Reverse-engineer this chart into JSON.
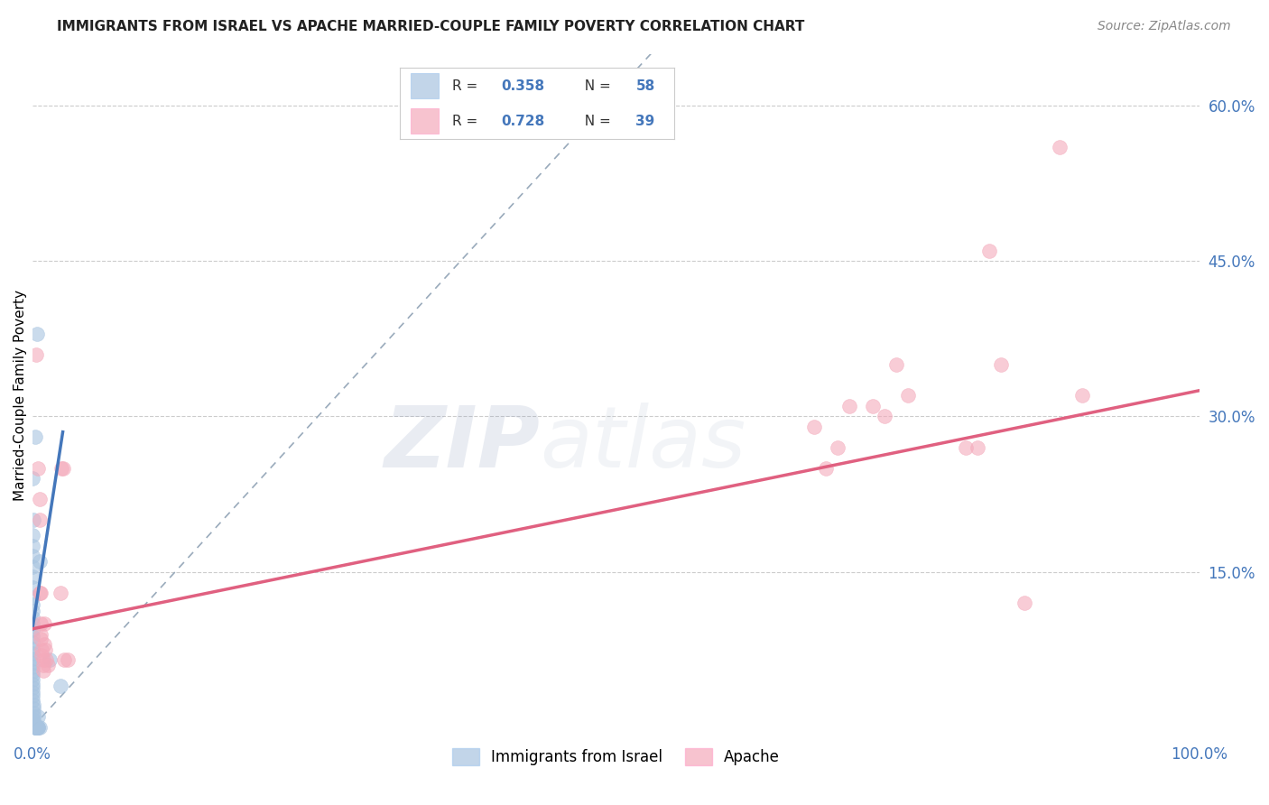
{
  "title": "IMMIGRANTS FROM ISRAEL VS APACHE MARRIED-COUPLE FAMILY POVERTY CORRELATION CHART",
  "source": "Source: ZipAtlas.com",
  "ylabel_label": "Married-Couple Family Poverty",
  "legend_label1": "Immigrants from Israel",
  "legend_label2": "Apache",
  "R1": 0.358,
  "N1": 58,
  "R2": 0.728,
  "N2": 39,
  "color_blue": "#A8C4E0",
  "color_pink": "#F4AABB",
  "color_blue_line": "#4477BB",
  "color_pink_line": "#E06080",
  "color_dashed": "#99AABB",
  "watermark_zip": "ZIP",
  "watermark_atlas": "atlas",
  "blue_points": [
    [
      0.002,
      0.28
    ],
    [
      0.004,
      0.38
    ],
    [
      0.001,
      0.2
    ],
    [
      0.0,
      0.185
    ],
    [
      0.0,
      0.175
    ],
    [
      0.0,
      0.165
    ],
    [
      0.0,
      0.155
    ],
    [
      0.0,
      0.145
    ],
    [
      0.0,
      0.135
    ],
    [
      0.0,
      0.125
    ],
    [
      0.0,
      0.118
    ],
    [
      0.0,
      0.112
    ],
    [
      0.0,
      0.106
    ],
    [
      0.0,
      0.1
    ],
    [
      0.0,
      0.094
    ],
    [
      0.0,
      0.088
    ],
    [
      0.0,
      0.082
    ],
    [
      0.0,
      0.076
    ],
    [
      0.0,
      0.071
    ],
    [
      0.0,
      0.066
    ],
    [
      0.0,
      0.062
    ],
    [
      0.0,
      0.058
    ],
    [
      0.0,
      0.054
    ],
    [
      0.0,
      0.05
    ],
    [
      0.0,
      0.046
    ],
    [
      0.0,
      0.042
    ],
    [
      0.0,
      0.038
    ],
    [
      0.0,
      0.034
    ],
    [
      0.0,
      0.03
    ],
    [
      0.0,
      0.026
    ],
    [
      0.001,
      0.022
    ],
    [
      0.001,
      0.018
    ],
    [
      0.001,
      0.014
    ],
    [
      0.001,
      0.01
    ],
    [
      0.001,
      0.007
    ],
    [
      0.001,
      0.004
    ],
    [
      0.002,
      0.001
    ],
    [
      0.002,
      0.0
    ],
    [
      0.002,
      0.0
    ],
    [
      0.002,
      0.0
    ],
    [
      0.003,
      0.0
    ],
    [
      0.003,
      0.0
    ],
    [
      0.003,
      0.0
    ],
    [
      0.003,
      0.0
    ],
    [
      0.003,
      0.0
    ],
    [
      0.004,
      0.0
    ],
    [
      0.004,
      0.0
    ],
    [
      0.004,
      0.0
    ],
    [
      0.004,
      0.0
    ],
    [
      0.005,
      0.0
    ],
    [
      0.005,
      0.0
    ],
    [
      0.005,
      0.0
    ],
    [
      0.005,
      0.01
    ],
    [
      0.006,
      0.0
    ],
    [
      0.024,
      0.04
    ],
    [
      0.015,
      0.065
    ],
    [
      0.006,
      0.16
    ],
    [
      0.0,
      0.24
    ]
  ],
  "pink_points": [
    [
      0.003,
      0.36
    ],
    [
      0.005,
      0.25
    ],
    [
      0.006,
      0.22
    ],
    [
      0.006,
      0.2
    ],
    [
      0.006,
      0.13
    ],
    [
      0.007,
      0.13
    ],
    [
      0.007,
      0.1
    ],
    [
      0.007,
      0.09
    ],
    [
      0.007,
      0.085
    ],
    [
      0.008,
      0.075
    ],
    [
      0.008,
      0.07
    ],
    [
      0.009,
      0.065
    ],
    [
      0.009,
      0.06
    ],
    [
      0.009,
      0.055
    ],
    [
      0.01,
      0.1
    ],
    [
      0.01,
      0.08
    ],
    [
      0.011,
      0.075
    ],
    [
      0.012,
      0.065
    ],
    [
      0.013,
      0.06
    ],
    [
      0.024,
      0.13
    ],
    [
      0.025,
      0.25
    ],
    [
      0.026,
      0.25
    ],
    [
      0.027,
      0.065
    ],
    [
      0.03,
      0.065
    ],
    [
      0.67,
      0.29
    ],
    [
      0.68,
      0.25
    ],
    [
      0.69,
      0.27
    ],
    [
      0.7,
      0.31
    ],
    [
      0.72,
      0.31
    ],
    [
      0.73,
      0.3
    ],
    [
      0.74,
      0.35
    ],
    [
      0.75,
      0.32
    ],
    [
      0.8,
      0.27
    ],
    [
      0.81,
      0.27
    ],
    [
      0.82,
      0.46
    ],
    [
      0.83,
      0.35
    ],
    [
      0.85,
      0.12
    ],
    [
      0.88,
      0.56
    ],
    [
      0.9,
      0.32
    ]
  ],
  "blue_line_x": [
    0.0,
    0.026
  ],
  "blue_line_y_start": 0.095,
  "blue_line_y_end": 0.285,
  "pink_line_x": [
    0.0,
    1.0
  ],
  "pink_line_y_start": 0.095,
  "pink_line_y_end": 0.325,
  "dash_line_x": [
    0.0,
    0.53
  ],
  "dash_line_y": [
    0.0,
    0.65
  ],
  "xlim": [
    0.0,
    1.0
  ],
  "ylim": [
    -0.01,
    0.65
  ],
  "ytick_vals": [
    0.15,
    0.3,
    0.45,
    0.6
  ],
  "ytick_labels": [
    "15.0%",
    "30.0%",
    "45.0%",
    "60.0%"
  ],
  "xtick_vals": [
    0.0,
    1.0
  ],
  "xtick_labels": [
    "0.0%",
    "100.0%"
  ],
  "tick_color": "#4477BB",
  "title_fontsize": 11,
  "axis_tick_fontsize": 12,
  "axis_label_fontsize": 11,
  "source_fontsize": 10
}
